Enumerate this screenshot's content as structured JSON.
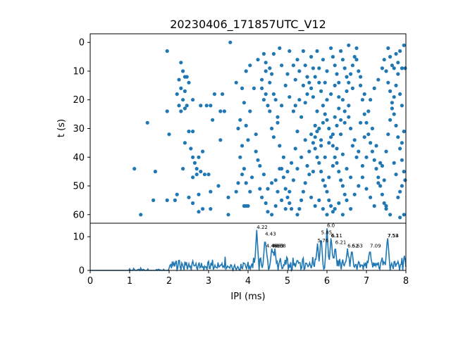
{
  "chart_data": [
    {
      "type": "scatter",
      "title": "20230406_171857UTC_V12",
      "ylabel": "t (s)",
      "xlim": [
        0,
        8
      ],
      "ylim": [
        63,
        -3
      ],
      "y_inverted": true,
      "yticks": [
        "0",
        "10",
        "20",
        "30",
        "40",
        "50",
        "60"
      ],
      "color": "#1f77b4",
      "points": [
        [
          1.95,
          3
        ],
        [
          2.3,
          7
        ],
        [
          2.35,
          10
        ],
        [
          2.4,
          12
        ],
        [
          2.45,
          12
        ],
        [
          2.5,
          14
        ],
        [
          2.25,
          13
        ],
        [
          2.3,
          16
        ],
        [
          2.2,
          18
        ],
        [
          2.4,
          17
        ],
        [
          2.35,
          20
        ],
        [
          2.45,
          22
        ],
        [
          2.25,
          22
        ],
        [
          2.3,
          24
        ],
        [
          2.4,
          23
        ],
        [
          1.95,
          24
        ],
        [
          2.6,
          20
        ],
        [
          2.6,
          31
        ],
        [
          2.5,
          31
        ],
        [
          2.4,
          35
        ],
        [
          2.55,
          37
        ],
        [
          2.6,
          40
        ],
        [
          2.65,
          42
        ],
        [
          2.7,
          44
        ],
        [
          2.7,
          46
        ],
        [
          2.6,
          47
        ],
        [
          2.75,
          40
        ],
        [
          2.8,
          45
        ],
        [
          2.85,
          38
        ],
        [
          2.9,
          46
        ],
        [
          3.0,
          46
        ],
        [
          3.05,
          52
        ],
        [
          3.05,
          22
        ],
        [
          2.95,
          22
        ],
        [
          2.8,
          22
        ],
        [
          3.1,
          27
        ],
        [
          3.15,
          18
        ],
        [
          3.35,
          18
        ],
        [
          3.3,
          24
        ],
        [
          3.4,
          24
        ],
        [
          3.5,
          54
        ],
        [
          3.5,
          60
        ],
        [
          3.3,
          34
        ],
        [
          3.25,
          50
        ],
        [
          3.05,
          58
        ],
        [
          2.85,
          58
        ],
        [
          2.75,
          59
        ],
        [
          2.6,
          56
        ],
        [
          2.5,
          54
        ],
        [
          2.35,
          44
        ],
        [
          2.2,
          53
        ],
        [
          2.15,
          55
        ],
        [
          2.0,
          32
        ],
        [
          1.95,
          55
        ],
        [
          1.6,
          55
        ],
        [
          1.65,
          45
        ],
        [
          1.45,
          28
        ],
        [
          1.12,
          44
        ],
        [
          1.28,
          60
        ],
        [
          2.75,
          53
        ],
        [
          3.55,
          0
        ],
        [
          3.7,
          52
        ],
        [
          3.75,
          49
        ],
        [
          3.85,
          46
        ],
        [
          3.9,
          44
        ],
        [
          3.95,
          49
        ],
        [
          3.85,
          36
        ],
        [
          3.8,
          40
        ],
        [
          3.75,
          30
        ],
        [
          3.8,
          27
        ],
        [
          3.9,
          21
        ],
        [
          4.0,
          34
        ],
        [
          4.05,
          24
        ],
        [
          3.95,
          29
        ],
        [
          3.7,
          14
        ],
        [
          3.85,
          16
        ],
        [
          4.2,
          32
        ],
        [
          4.25,
          41
        ],
        [
          4.35,
          13
        ],
        [
          4.4,
          20
        ],
        [
          4.45,
          18
        ],
        [
          4.5,
          22
        ],
        [
          4.55,
          24
        ],
        [
          4.6,
          30
        ],
        [
          4.65,
          33
        ],
        [
          4.7,
          20
        ],
        [
          4.75,
          28
        ],
        [
          4.8,
          36
        ],
        [
          4.85,
          44
        ],
        [
          4.9,
          47
        ],
        [
          4.95,
          51
        ],
        [
          5.0,
          54
        ],
        [
          5.05,
          56
        ],
        [
          5.1,
          58
        ],
        [
          4.3,
          51
        ],
        [
          4.35,
          54
        ],
        [
          4.45,
          56
        ],
        [
          4.5,
          59
        ],
        [
          4.6,
          60
        ],
        [
          4.7,
          57
        ],
        [
          4.4,
          4
        ],
        [
          4.45,
          7
        ],
        [
          4.55,
          9
        ],
        [
          4.6,
          11
        ],
        [
          4.65,
          4
        ],
        [
          4.8,
          2
        ],
        [
          4.85,
          8
        ],
        [
          5.0,
          11
        ],
        [
          5.05,
          3
        ],
        [
          5.15,
          8
        ],
        [
          5.2,
          13
        ],
        [
          5.25,
          6
        ],
        [
          5.3,
          10
        ],
        [
          5.4,
          3
        ],
        [
          5.45,
          8
        ],
        [
          5.5,
          12
        ],
        [
          5.6,
          5
        ],
        [
          5.65,
          9
        ],
        [
          5.75,
          3
        ],
        [
          5.8,
          14
        ],
        [
          5.85,
          17
        ],
        [
          5.9,
          22
        ],
        [
          5.95,
          25
        ],
        [
          6.0,
          27
        ],
        [
          6.05,
          30
        ],
        [
          6.1,
          33
        ],
        [
          6.15,
          36
        ],
        [
          6.2,
          40
        ],
        [
          6.25,
          42
        ],
        [
          6.3,
          45
        ],
        [
          6.35,
          48
        ],
        [
          6.4,
          50
        ],
        [
          6.45,
          53
        ],
        [
          6.5,
          55
        ],
        [
          5.6,
          32
        ],
        [
          5.65,
          35
        ],
        [
          5.7,
          37
        ],
        [
          5.75,
          40
        ],
        [
          5.8,
          42
        ],
        [
          5.85,
          45
        ],
        [
          5.9,
          48
        ],
        [
          5.95,
          50
        ],
        [
          6.0,
          52
        ],
        [
          6.05,
          55
        ],
        [
          6.1,
          57
        ],
        [
          6.15,
          59
        ],
        [
          5.5,
          43
        ],
        [
          5.55,
          46
        ],
        [
          5.45,
          49
        ],
        [
          5.4,
          52
        ],
        [
          5.35,
          55
        ],
        [
          5.3,
          58
        ],
        [
          5.25,
          60
        ],
        [
          5.7,
          29
        ],
        [
          5.75,
          31
        ],
        [
          5.85,
          34
        ],
        [
          6.2,
          26
        ],
        [
          6.3,
          23
        ],
        [
          6.4,
          20
        ],
        [
          6.5,
          17
        ],
        [
          6.55,
          14
        ],
        [
          6.6,
          11
        ],
        [
          6.65,
          8
        ],
        [
          6.7,
          5
        ],
        [
          6.75,
          2
        ],
        [
          6.8,
          10
        ],
        [
          6.85,
          15
        ],
        [
          6.9,
          20
        ],
        [
          6.95,
          25
        ],
        [
          7.0,
          28
        ],
        [
          7.05,
          32
        ],
        [
          7.1,
          35
        ],
        [
          7.15,
          38
        ],
        [
          7.2,
          41
        ],
        [
          7.25,
          44
        ],
        [
          7.3,
          47
        ],
        [
          7.35,
          50
        ],
        [
          7.4,
          53
        ],
        [
          7.45,
          56
        ],
        [
          7.5,
          58
        ],
        [
          7.55,
          2
        ],
        [
          7.6,
          5
        ],
        [
          7.65,
          8
        ],
        [
          7.7,
          9
        ],
        [
          7.75,
          4
        ],
        [
          7.8,
          7
        ],
        [
          7.85,
          3
        ],
        [
          7.9,
          9
        ],
        [
          7.95,
          1
        ],
        [
          7.98,
          9
        ],
        [
          7.5,
          10
        ],
        [
          7.55,
          14
        ],
        [
          7.6,
          17
        ],
        [
          7.65,
          21
        ],
        [
          7.7,
          25
        ],
        [
          7.75,
          29
        ],
        [
          7.8,
          33
        ],
        [
          7.85,
          37
        ],
        [
          7.9,
          41
        ],
        [
          7.95,
          45
        ],
        [
          7.98,
          48
        ],
        [
          7.9,
          50
        ],
        [
          7.85,
          52
        ],
        [
          7.8,
          54
        ],
        [
          7.95,
          60
        ],
        [
          7.85,
          61
        ],
        [
          7.6,
          60
        ],
        [
          7.5,
          57
        ],
        [
          7.45,
          48
        ],
        [
          7.35,
          42
        ],
        [
          7.25,
          36
        ],
        [
          7.15,
          30
        ],
        [
          7.05,
          24
        ],
        [
          6.95,
          18
        ],
        [
          6.85,
          12
        ],
        [
          6.75,
          6
        ],
        [
          6.65,
          16
        ],
        [
          6.55,
          22
        ],
        [
          6.45,
          28
        ],
        [
          6.35,
          32
        ],
        [
          6.25,
          37
        ],
        [
          6.15,
          43
        ],
        [
          6.05,
          47
        ],
        [
          5.95,
          40
        ],
        [
          5.85,
          36
        ],
        [
          5.75,
          24
        ],
        [
          5.65,
          19
        ],
        [
          5.55,
          14
        ],
        [
          5.45,
          21
        ],
        [
          5.35,
          26
        ],
        [
          5.25,
          31
        ],
        [
          5.15,
          24
        ],
        [
          5.05,
          19
        ],
        [
          4.95,
          15
        ],
        [
          4.85,
          22
        ],
        [
          4.75,
          26
        ],
        [
          4.65,
          18
        ],
        [
          4.55,
          14
        ],
        [
          4.45,
          10
        ],
        [
          4.35,
          16
        ],
        [
          4.25,
          6
        ],
        [
          4.15,
          16
        ],
        [
          4.05,
          8
        ],
        [
          3.95,
          10
        ],
        [
          5.2,
          37
        ],
        [
          5.1,
          42
        ],
        [
          5.0,
          45
        ],
        [
          4.9,
          40
        ],
        [
          4.8,
          44
        ],
        [
          4.7,
          48
        ],
        [
          4.6,
          49
        ],
        [
          4.5,
          51
        ],
        [
          4.4,
          46
        ],
        [
          4.3,
          43
        ],
        [
          4.2,
          38
        ],
        [
          4.1,
          47
        ],
        [
          4.0,
          57
        ],
        [
          3.95,
          57
        ],
        [
          3.9,
          57
        ],
        [
          4.05,
          52
        ],
        [
          5.6,
          54
        ],
        [
          5.7,
          57
        ],
        [
          5.8,
          55
        ],
        [
          5.9,
          58
        ],
        [
          6.0,
          60
        ],
        [
          6.2,
          58
        ],
        [
          6.3,
          56
        ],
        [
          6.4,
          60
        ],
        [
          6.6,
          58
        ],
        [
          6.7,
          53
        ],
        [
          6.8,
          50
        ],
        [
          6.9,
          47
        ],
        [
          7.0,
          51
        ],
        [
          7.1,
          54
        ],
        [
          7.2,
          57
        ],
        [
          7.3,
          49
        ],
        [
          7.4,
          43
        ],
        [
          7.5,
          38
        ],
        [
          7.55,
          32
        ],
        [
          7.6,
          27
        ],
        [
          7.65,
          23
        ],
        [
          7.7,
          19
        ],
        [
          7.75,
          15
        ],
        [
          7.8,
          11
        ],
        [
          7.85,
          18
        ],
        [
          7.9,
          22
        ],
        [
          7.95,
          31
        ],
        [
          7.9,
          35
        ],
        [
          7.7,
          42
        ],
        [
          7.75,
          46
        ],
        [
          6.1,
          2
        ],
        [
          6.15,
          5
        ],
        [
          6.2,
          8
        ],
        [
          6.25,
          11
        ],
        [
          6.3,
          14
        ],
        [
          6.35,
          3
        ],
        [
          6.4,
          6
        ],
        [
          6.45,
          9
        ],
        [
          6.5,
          12
        ],
        [
          6.55,
          1
        ],
        [
          6.0,
          10
        ],
        [
          5.95,
          14
        ],
        [
          5.9,
          6
        ],
        [
          5.8,
          9
        ],
        [
          5.7,
          12
        ],
        [
          5.6,
          16
        ],
        [
          5.5,
          18
        ],
        [
          5.4,
          15
        ],
        [
          5.3,
          20
        ],
        [
          5.2,
          22
        ],
        [
          6.6,
          30
        ],
        [
          6.7,
          34
        ],
        [
          6.8,
          38
        ],
        [
          6.9,
          43
        ],
        [
          7.0,
          40
        ],
        [
          7.1,
          20
        ],
        [
          7.2,
          16
        ],
        [
          7.3,
          13
        ],
        [
          7.4,
          9
        ],
        [
          7.45,
          6
        ],
        [
          6.05,
          35
        ],
        [
          6.15,
          32
        ],
        [
          6.25,
          29
        ],
        [
          6.35,
          27
        ],
        [
          6.45,
          24
        ],
        [
          6.55,
          26
        ],
        [
          6.65,
          36
        ],
        [
          6.75,
          40
        ],
        [
          6.85,
          28
        ],
        [
          6.95,
          33
        ],
        [
          5.65,
          45
        ],
        [
          5.55,
          38
        ],
        [
          5.45,
          34
        ],
        [
          5.35,
          40
        ],
        [
          5.25,
          44
        ],
        [
          5.15,
          48
        ],
        [
          5.05,
          52
        ],
        [
          4.95,
          58
        ],
        [
          4.85,
          55
        ],
        [
          4.75,
          52
        ],
        [
          5.9,
          28
        ],
        [
          5.8,
          30
        ],
        [
          5.7,
          33
        ],
        [
          6.0,
          20
        ],
        [
          6.1,
          18
        ],
        [
          6.2,
          15
        ],
        [
          6.3,
          19
        ],
        [
          6.4,
          39
        ],
        [
          6.5,
          44
        ],
        [
          6.6,
          47
        ]
      ]
    },
    {
      "type": "line",
      "xlabel": "IPI (ms)",
      "xlim": [
        0,
        8
      ],
      "ylim": [
        0,
        14
      ],
      "xticks": [
        "0",
        "1",
        "2",
        "3",
        "4",
        "5",
        "6",
        "7",
        "8"
      ],
      "yticks": [
        "0",
        "10"
      ],
      "color": "#1f77b4",
      "peaks": [
        {
          "x": 4.22,
          "y": 12,
          "label": "4.22"
        },
        {
          "x": 4.43,
          "y": 10,
          "label": "4.43"
        },
        {
          "x": 4.46,
          "y": 6.5,
          "label": "4.46"
        },
        {
          "x": 4.6,
          "y": 6.5,
          "label": "4.60"
        },
        {
          "x": 4.63,
          "y": 6.5,
          "label": "4.63"
        },
        {
          "x": 4.68,
          "y": 6.5,
          "label": "4.68"
        },
        {
          "x": 5.76,
          "y": 8,
          "label": "5.76"
        },
        {
          "x": 5.85,
          "y": 10.5,
          "label": "5.85"
        },
        {
          "x": 6.0,
          "y": 12.5,
          "label": "6.0"
        },
        {
          "x": 6.1,
          "y": 9.5,
          "label": "6.1"
        },
        {
          "x": 6.11,
          "y": 9.5,
          "label": "6.11"
        },
        {
          "x": 6.21,
          "y": 7.5,
          "label": "6.21"
        },
        {
          "x": 6.52,
          "y": 6.5,
          "label": "6.52"
        },
        {
          "x": 6.63,
          "y": 6.5,
          "label": "6.63"
        },
        {
          "x": 7.09,
          "y": 6.5,
          "label": "7.09"
        },
        {
          "x": 7.53,
          "y": 9.5,
          "label": "7.53"
        },
        {
          "x": 7.54,
          "y": 9.5,
          "label": "7.54"
        }
      ]
    }
  ]
}
